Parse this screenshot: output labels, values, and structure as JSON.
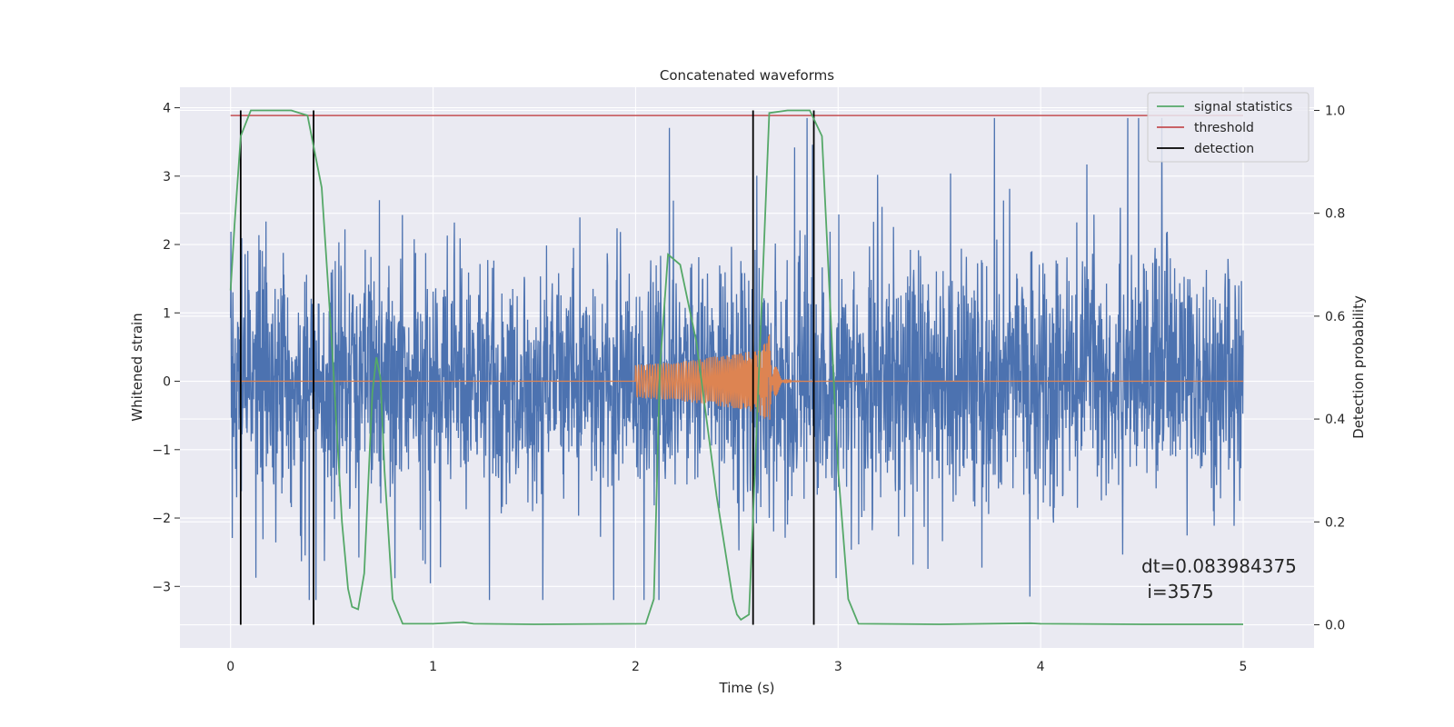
{
  "chart_data": {
    "type": "line",
    "title": "Concatenated waveforms",
    "xlabel": "Time (s)",
    "ylabel": "Whitened strain",
    "y2label": "Detection probability",
    "xlim": [
      -0.25,
      5.35
    ],
    "ylim": [
      -3.9,
      4.3
    ],
    "y2lim": [
      -0.045,
      1.045
    ],
    "xticks": [
      "0",
      "1",
      "2",
      "3",
      "4",
      "5"
    ],
    "yticks": [
      "−3",
      "−2",
      "−1",
      "0",
      "1",
      "2",
      "3",
      "4"
    ],
    "y2ticks": [
      "0.0",
      "0.2",
      "0.4",
      "0.6",
      "0.8",
      "1.0"
    ],
    "grid": true,
    "legend_position": "top-right",
    "legend": [
      {
        "label": "signal statistics",
        "color": "#55a868"
      },
      {
        "label": "threshold",
        "color": "#c44e52"
      },
      {
        "label": "detection",
        "color": "#000000"
      }
    ],
    "series": [
      {
        "role": "noisy whitened strain",
        "axis": "left",
        "color": "#4c72b0",
        "x_range": [
          0,
          5
        ],
        "approx_amplitude": 2.8,
        "peak_max": 3.85,
        "peak_min": -3.2
      },
      {
        "role": "injected waveform",
        "axis": "left",
        "color": "#dd8452",
        "x_range": [
          0,
          5
        ],
        "chirp_start": 2.0,
        "merger_time": 2.66,
        "peak_amplitude": 0.88
      },
      {
        "name": "signal statistics",
        "axis": "right",
        "color": "#55a868",
        "x": [
          0.0,
          0.02,
          0.05,
          0.1,
          0.3,
          0.38,
          0.45,
          0.5,
          0.55,
          0.58,
          0.6,
          0.63,
          0.66,
          0.7,
          0.72,
          0.74,
          0.76,
          0.8,
          0.85,
          1.0,
          1.15,
          1.2,
          1.5,
          2.05,
          2.09,
          2.12,
          2.16,
          2.22,
          2.3,
          2.4,
          2.48,
          2.5,
          2.52,
          2.56,
          2.6,
          2.66,
          2.75,
          2.86,
          2.92,
          3.0,
          3.05,
          3.1,
          3.5,
          3.95,
          4.0,
          4.5,
          5.0
        ],
        "y": [
          0.65,
          0.78,
          0.95,
          1.0,
          1.0,
          0.99,
          0.85,
          0.55,
          0.2,
          0.07,
          0.035,
          0.03,
          0.1,
          0.45,
          0.52,
          0.48,
          0.3,
          0.05,
          0.002,
          0.002,
          0.005,
          0.002,
          0.001,
          0.002,
          0.05,
          0.5,
          0.72,
          0.7,
          0.55,
          0.25,
          0.05,
          0.02,
          0.01,
          0.02,
          0.4,
          0.995,
          1.0,
          1.0,
          0.95,
          0.3,
          0.05,
          0.002,
          0.001,
          0.003,
          0.002,
          0.001,
          0.001
        ]
      },
      {
        "name": "threshold",
        "axis": "right",
        "color": "#c44e52",
        "x": [
          0,
          5
        ],
        "y": [
          0.99,
          0.99
        ]
      },
      {
        "name": "detection",
        "axis": "right",
        "color": "#000000",
        "type": "vlines",
        "x": [
          0.05,
          0.41,
          2.58,
          2.88
        ],
        "ymin": 0.0,
        "ymax": 1.0
      }
    ],
    "annotation": [
      "dt=0.083984375",
      " i=3575"
    ]
  },
  "colors": {
    "axes_background": "#eaeaf2",
    "grid": "#ffffff",
    "strain": "#4c72b0",
    "waveform": "#dd8452",
    "statistics": "#55a868",
    "threshold": "#c44e52",
    "detection": "#000000"
  }
}
